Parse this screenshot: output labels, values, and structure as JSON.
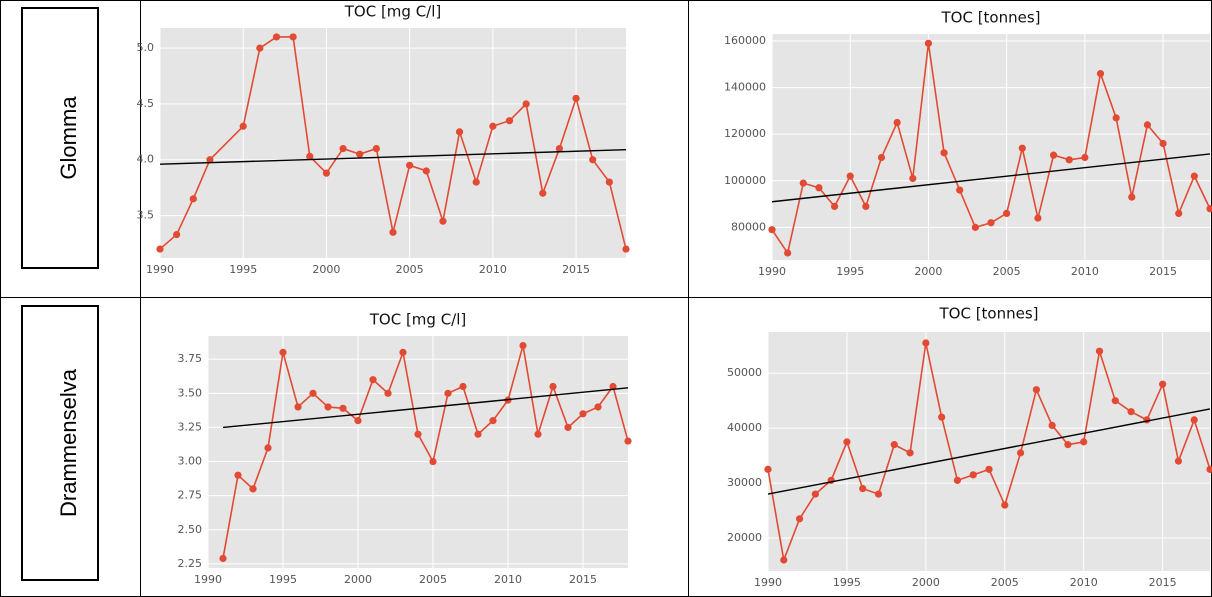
{
  "table": {
    "row_labels": [
      "Glomma",
      "Drammenselva"
    ]
  },
  "chart_data": [
    {
      "type": "line",
      "title": "TOC [mg C/l]",
      "x": [
        1990,
        1991,
        1992,
        1993,
        1995,
        1996,
        1997,
        1998,
        1999,
        2000,
        2001,
        2002,
        2003,
        2004,
        2005,
        2006,
        2007,
        2008,
        2009,
        2010,
        2011,
        2012,
        2013,
        2014,
        2015,
        2016,
        2017,
        2018
      ],
      "series": [
        {
          "name": "TOC",
          "color": "#e24a33",
          "values": [
            3.2,
            3.33,
            3.65,
            4.0,
            4.3,
            5.0,
            5.1,
            5.1,
            4.03,
            3.88,
            4.1,
            4.05,
            4.1,
            3.35,
            3.95,
            3.9,
            3.45,
            4.25,
            3.8,
            4.3,
            4.35,
            4.5,
            3.7,
            4.1,
            4.55,
            4.0,
            3.8,
            3.2
          ]
        }
      ],
      "trend": {
        "x": [
          1990,
          2018
        ],
        "values": [
          3.96,
          4.09
        ],
        "color": "#000000"
      },
      "xlim": [
        1990,
        2018
      ],
      "xticks": [
        1990,
        1995,
        2000,
        2005,
        2010,
        2015
      ],
      "ylim": [
        3.12,
        5.18
      ],
      "yticks": [
        {
          "value": 3.5,
          "label": "3.5"
        },
        {
          "value": 4,
          "label": "4.0"
        },
        {
          "value": 4.5,
          "label": "4.5"
        },
        {
          "value": 5,
          "label": "5.0"
        }
      ],
      "grid": true
    },
    {
      "type": "line",
      "title": "TOC [tonnes]",
      "x": [
        1990,
        1991,
        1992,
        1993,
        1994,
        1995,
        1996,
        1997,
        1998,
        1999,
        2000,
        2001,
        2002,
        2003,
        2004,
        2005,
        2006,
        2007,
        2008,
        2009,
        2010,
        2011,
        2012,
        2013,
        2014,
        2015,
        2016,
        2017,
        2018
      ],
      "series": [
        {
          "name": "TOC",
          "color": "#e24a33",
          "values": [
            79000,
            69000,
            99000,
            97000,
            89000,
            102000,
            89000,
            110000,
            125000,
            101000,
            159000,
            112000,
            96000,
            80000,
            82000,
            86000,
            114000,
            84000,
            111000,
            109000,
            110000,
            146000,
            127000,
            93000,
            124000,
            116000,
            86000,
            102000,
            88000
          ]
        }
      ],
      "trend": {
        "x": [
          1990,
          2018
        ],
        "values": [
          91000,
          111500
        ],
        "color": "#000000"
      },
      "xlim": [
        1990,
        2018
      ],
      "xticks": [
        1990,
        1995,
        2000,
        2005,
        2010,
        2015
      ],
      "ylim": [
        66000,
        163000
      ],
      "yticks": [
        80000,
        100000,
        120000,
        140000,
        160000
      ],
      "grid": true
    },
    {
      "type": "line",
      "title": "TOC [mg C/l]",
      "x": [
        1991,
        1992,
        1993,
        1994,
        1995,
        1996,
        1997,
        1998,
        1999,
        2000,
        2001,
        2002,
        2003,
        2004,
        2005,
        2006,
        2007,
        2008,
        2009,
        2010,
        2011,
        2012,
        2013,
        2014,
        2015,
        2016,
        2017,
        2018
      ],
      "series": [
        {
          "name": "TOC",
          "color": "#e24a33",
          "values": [
            2.29,
            2.9,
            2.8,
            3.1,
            3.8,
            3.4,
            3.5,
            3.4,
            3.39,
            3.3,
            3.6,
            3.5,
            3.8,
            3.2,
            3.0,
            3.5,
            3.55,
            3.2,
            3.3,
            3.45,
            3.85,
            3.2,
            3.55,
            3.25,
            3.35,
            3.4,
            3.55,
            3.15
          ]
        }
      ],
      "trend": {
        "x": [
          1991,
          2018
        ],
        "values": [
          3.25,
          3.54
        ],
        "color": "#000000"
      },
      "xlim": [
        1990,
        2018
      ],
      "xticks": [
        1990,
        1995,
        2000,
        2005,
        2010,
        2015
      ],
      "ylim": [
        2.22,
        3.92
      ],
      "yticks": [
        2.25,
        {
          "value": 2.5,
          "label": "2.50"
        },
        2.75,
        {
          "value": 3,
          "label": "3.00"
        },
        3.25,
        {
          "value": 3.5,
          "label": "3.50"
        },
        3.75
      ],
      "grid": true
    },
    {
      "type": "line",
      "title": "TOC [tonnes]",
      "x": [
        1990,
        1991,
        1992,
        1993,
        1994,
        1995,
        1996,
        1997,
        1998,
        1999,
        2000,
        2001,
        2002,
        2003,
        2004,
        2005,
        2006,
        2007,
        2008,
        2009,
        2010,
        2011,
        2012,
        2013,
        2014,
        2015,
        2016,
        2017,
        2018
      ],
      "series": [
        {
          "name": "TOC",
          "color": "#e24a33",
          "values": [
            32500,
            16000,
            23500,
            28000,
            30500,
            37500,
            29000,
            28000,
            37000,
            35500,
            55500,
            42000,
            30500,
            31500,
            32500,
            26000,
            35500,
            47000,
            40500,
            37000,
            37500,
            54000,
            45000,
            43000,
            41500,
            48000,
            34000,
            41500,
            32500
          ]
        }
      ],
      "trend": {
        "x": [
          1990,
          2018
        ],
        "values": [
          28000,
          43500
        ],
        "color": "#000000"
      },
      "xlim": [
        1990,
        2018
      ],
      "xticks": [
        1990,
        1995,
        2000,
        2005,
        2010,
        2015
      ],
      "ylim": [
        14000,
        57500
      ],
      "yticks": [
        20000,
        30000,
        40000,
        50000
      ],
      "grid": true
    }
  ]
}
